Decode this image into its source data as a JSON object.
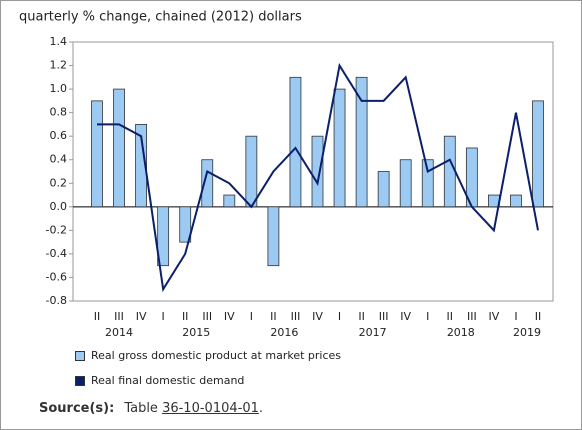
{
  "chart_data": {
    "type": "bar_line",
    "title": "quarterly % change, chained (2012) dollars",
    "category_groups": [
      {
        "label": "2014",
        "categories": [
          "II",
          "III",
          "IV"
        ]
      },
      {
        "label": "2015",
        "categories": [
          "I",
          "II",
          "III",
          "IV"
        ]
      },
      {
        "label": "2016",
        "categories": [
          "I",
          "II",
          "III",
          "IV"
        ]
      },
      {
        "label": "2017",
        "categories": [
          "I",
          "II",
          "III",
          "IV"
        ]
      },
      {
        "label": "2018",
        "categories": [
          "I",
          "II",
          "III",
          "IV"
        ]
      },
      {
        "label": "2019",
        "categories": [
          "I",
          "II"
        ]
      }
    ],
    "series": [
      {
        "name": "Real gross domestic product at market prices",
        "kind": "bar",
        "color": "#9ccaf2",
        "values": [
          0.9,
          1.0,
          0.7,
          -0.5,
          -0.3,
          0.4,
          0.1,
          0.6,
          -0.5,
          1.1,
          0.6,
          1.0,
          1.1,
          0.3,
          0.4,
          0.4,
          0.6,
          0.5,
          0.1,
          0.1,
          0.9
        ]
      },
      {
        "name": "Real final domestic demand",
        "kind": "line",
        "color": "#0b1f6b",
        "values": [
          0.7,
          0.7,
          0.6,
          -0.7,
          -0.4,
          0.3,
          0.2,
          0.0,
          0.3,
          0.5,
          0.2,
          1.2,
          0.9,
          0.9,
          1.1,
          0.3,
          0.4,
          0.0,
          -0.2,
          0.8,
          -0.2
        ]
      }
    ],
    "ylim": [
      -0.8,
      1.4
    ],
    "yticks": [
      1.4,
      1.2,
      {
        "value": 1,
        "label": "1.0"
      },
      0.8,
      0.6,
      0.4,
      0.2,
      {
        "value": 0,
        "label": "0.0"
      },
      -0.2,
      -0.4,
      -0.6,
      -0.8
    ],
    "source": {
      "label": "Source(s):",
      "prefix": "Table",
      "link": "36-10-0104-01",
      "suffix": "."
    }
  }
}
